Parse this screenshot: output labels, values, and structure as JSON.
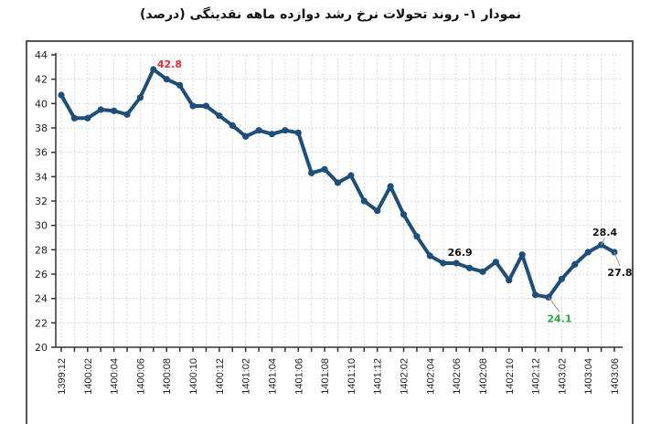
{
  "title": "نمودار ۱- روند تحولات نرخ رشد دوازده ماهه نقدینگی (درصد)",
  "colors": {
    "line": "#1f4e79",
    "max_label": "#e0302f",
    "min_label": "#2ca84a",
    "normal_label": "#111111",
    "grid": "#d9d9d9",
    "axis": "#333333"
  },
  "chart_data": {
    "type": "line",
    "title": "نمودار ۱- روند تحولات نرخ رشد دوازده ماهه نقدینگی (درصد)",
    "xlabel": "",
    "ylabel": "",
    "ylim": [
      20,
      44
    ],
    "yticks": [
      20,
      22,
      24,
      26,
      28,
      30,
      32,
      34,
      36,
      38,
      40,
      42,
      44
    ],
    "grid": true,
    "legend": null,
    "x": [
      "1399:12",
      "1400:01",
      "1400:02",
      "1400:03",
      "1400:04",
      "1400:05",
      "1400:06",
      "1400:07",
      "1400:08",
      "1400:09",
      "1400:10",
      "1400:11",
      "1400:12",
      "1401:01",
      "1401:02",
      "1401:03",
      "1401:04",
      "1401:05",
      "1401:06",
      "1401:07",
      "1401:08",
      "1401:09",
      "1401:10",
      "1401:11",
      "1401:12",
      "1402:01",
      "1402:02",
      "1402:03",
      "1402:04",
      "1402:05",
      "1402:06",
      "1402:07",
      "1402:08",
      "1402:09",
      "1402:10",
      "1402:11",
      "1402:12",
      "1403:01",
      "1403:02",
      "1403:03",
      "1403:04",
      "1403:05",
      "1403:06"
    ],
    "xtick_labels": [
      "1399:12",
      "1400:02",
      "1400:04",
      "1400:06",
      "1400:08",
      "1400:10",
      "1400:12",
      "1401:02",
      "1401:04",
      "1401:06",
      "1401:08",
      "1401:10",
      "1401:12",
      "1402:02",
      "1402:04",
      "1402:06",
      "1402:08",
      "1402:10",
      "1402:12",
      "1403:02",
      "1403:04",
      "1403:06"
    ],
    "series": [
      {
        "name": "نرخ رشد دوازده ماهه نقدینگی",
        "values": [
          40.7,
          38.8,
          38.8,
          39.5,
          39.4,
          39.1,
          40.5,
          42.8,
          42.0,
          41.5,
          39.8,
          39.8,
          39.0,
          38.2,
          37.3,
          37.8,
          37.5,
          37.8,
          37.6,
          34.3,
          34.6,
          33.5,
          34.1,
          32.0,
          31.2,
          33.2,
          30.9,
          29.1,
          27.5,
          26.9,
          26.9,
          26.5,
          26.2,
          27.0,
          25.5,
          27.6,
          24.3,
          24.1,
          25.6,
          26.8,
          27.8,
          28.4,
          27.8
        ]
      }
    ],
    "annotations": [
      {
        "index": 7,
        "text": "42.8",
        "color": "max"
      },
      {
        "index": 30,
        "text": "26.9",
        "color": "normal"
      },
      {
        "index": 37,
        "text": "24.1",
        "color": "min"
      },
      {
        "index": 41,
        "text": "28.4",
        "color": "normal"
      },
      {
        "index": 42,
        "text": "27.8",
        "color": "normal"
      }
    ]
  }
}
